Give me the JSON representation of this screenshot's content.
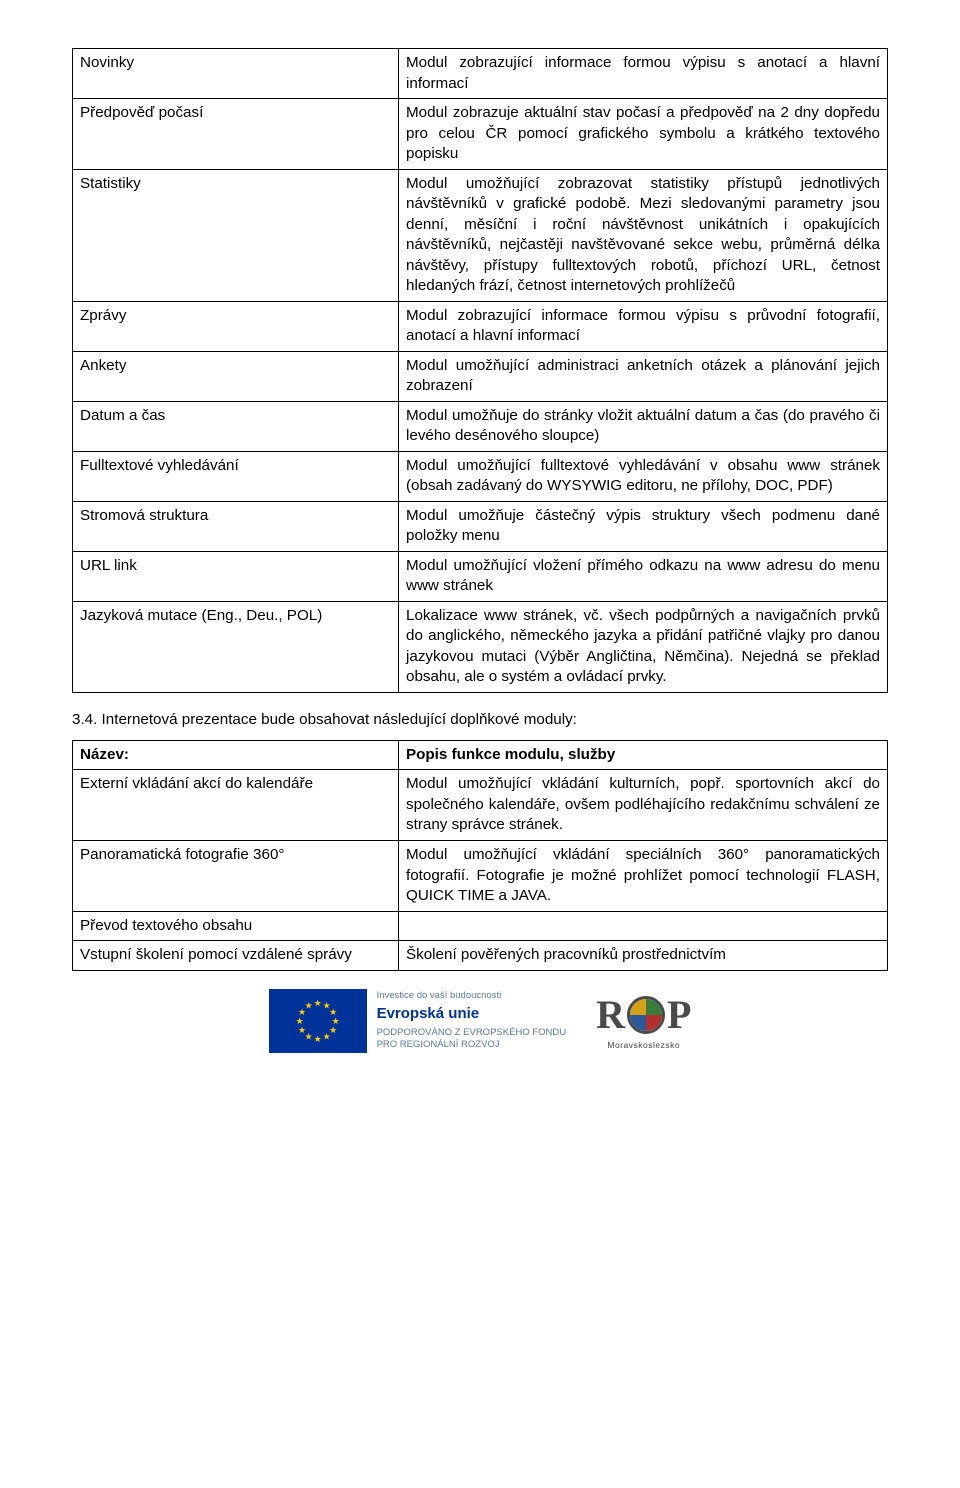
{
  "table1": {
    "rows": [
      {
        "label": "Novinky",
        "desc": "Modul zobrazující informace formou výpisu s anotací a hlavní informací"
      },
      {
        "label": "Předpověď počasí",
        "desc": "Modul zobrazuje aktuální stav počasí a předpověď na 2 dny dopředu pro celou ČR pomocí grafického symbolu a krátkého textového popisku"
      },
      {
        "label": "Statistiky",
        "desc": "Modul umožňující zobrazovat statistiky přístupů jednotlivých návštěvníků v grafické podobě. Mezi sledovanými parametry jsou denní, měsíční i roční návštěvnost unikátních i opakujících návštěvníků, nejčastěji navštěvované sekce webu, průměrná délka návštěvy, přístupy fulltextových robotů, příchozí URL, četnost hledaných frází, četnost internetových prohlížečů"
      },
      {
        "label": "Zprávy",
        "desc": "Modul zobrazující informace formou výpisu s průvodní fotografií, anotací a hlavní informací"
      },
      {
        "label": "Ankety",
        "desc": "Modul umožňující administraci anketních otázek a plánování jejich zobrazení"
      },
      {
        "label": "Datum a čas",
        "desc": "Modul umožňuje do stránky vložit aktuální datum a čas (do pravého či levého desénového sloupce)"
      },
      {
        "label": "Fulltextové vyhledávání",
        "desc": "Modul umožňující fulltextové vyhledávání v obsahu www stránek (obsah zadávaný do WYSYWIG editoru, ne přílohy, DOC, PDF)"
      },
      {
        "label": "Stromová struktura",
        "desc": "Modul umožňuje částečný výpis struktury všech podmenu dané položky menu"
      },
      {
        "label": "URL link",
        "desc": "Modul umožňující vložení přímého odkazu na www adresu do menu www stránek"
      },
      {
        "label": "Jazyková mutace (Eng., Deu., POL)",
        "desc": "Lokalizace www stránek, vč. všech podpůrných a navigačních prvků do anglického, německého jazyka a přidání patřičné vlajky pro danou jazykovou mutaci (Výběr Angličtina, Němčina). Nejedná se překlad obsahu, ale o systém a ovládací prvky."
      }
    ]
  },
  "section_title": "3.4. Internetová prezentace bude obsahovat následující doplňkové moduly:",
  "table2": {
    "header": {
      "left": "Název:",
      "right": "Popis funkce modulu, služby"
    },
    "rows": [
      {
        "label": "Externí vkládání akcí do kalendáře",
        "desc": "Modul umožňující vkládání kulturních, popř. sportovních akcí do společného kalendáře, ovšem podléhajícího redakčnímu schválení ze strany správce stránek."
      },
      {
        "label": "Panoramatická fotografie 360°",
        "desc": "Modul umožňující vkládání speciálních 360° panoramatických fotografií. Fotografie je možné prohlížet pomocí technologií FLASH, QUICK TIME a JAVA."
      },
      {
        "label": "Převod textového obsahu",
        "desc": ""
      },
      {
        "label": "Vstupní školení pomocí vzdálené správy",
        "desc": "Školení pověřených pracovníků prostřednictvím"
      }
    ]
  },
  "footer": {
    "eu_line1": "Investice do vaší budoucnosti",
    "eu_line2": "Evropská unie",
    "eu_line3": "PODPOROVÁNO Z EVROPSKÉHO FONDU",
    "eu_line4": "PRO REGIONÁLNÍ ROZVOJ",
    "rop_label": "Moravskoslezsko"
  }
}
